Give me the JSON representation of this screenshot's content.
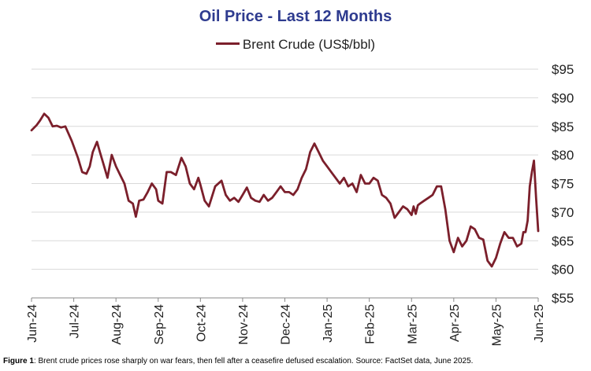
{
  "chart_data": {
    "type": "line",
    "title": "Oil Price - Last 12 Months",
    "ylim": [
      55,
      95
    ],
    "ytick_labels": [
      "$55",
      "$60",
      "$65",
      "$70",
      "$75",
      "$80",
      "$85",
      "$90",
      "$95"
    ],
    "ytick_values": [
      55,
      60,
      65,
      70,
      75,
      80,
      85,
      90,
      95
    ],
    "x_ticks": [
      "Jun-24",
      "Jul-24",
      "Aug-24",
      "Sep-24",
      "Oct-24",
      "Nov-24",
      "Dec-24",
      "Jan-25",
      "Feb-25",
      "Mar-25",
      "Apr-25",
      "May-25",
      "Jun-25"
    ],
    "grid": true,
    "legend_position": "top-center",
    "series": [
      {
        "name": "Brent Crude (US$/bbl)",
        "color": "#7B1F2B",
        "x": [
          0,
          0.12,
          0.2,
          0.3,
          0.4,
          0.5,
          0.6,
          0.7,
          0.8,
          0.95,
          1.0,
          1.1,
          1.2,
          1.3,
          1.38,
          1.45,
          1.55,
          1.62,
          1.7,
          1.8,
          1.9,
          2.0,
          2.1,
          2.2,
          2.3,
          2.4,
          2.47,
          2.55,
          2.65,
          2.75,
          2.85,
          2.95,
          3.0,
          3.1,
          3.2,
          3.3,
          3.42,
          3.55,
          3.65,
          3.75,
          3.85,
          3.95,
          4.0,
          4.1,
          4.2,
          4.35,
          4.5,
          4.6,
          4.7,
          4.8,
          4.9,
          5.0,
          5.1,
          5.2,
          5.3,
          5.4,
          5.5,
          5.6,
          5.7,
          5.8,
          5.9,
          6.0,
          6.1,
          6.2,
          6.3,
          6.4,
          6.5,
          6.55,
          6.6,
          6.7,
          6.8,
          6.9,
          7.0,
          7.1,
          7.2,
          7.3,
          7.4,
          7.5,
          7.6,
          7.7,
          7.8,
          7.9,
          8.0,
          8.1,
          8.2,
          8.3,
          8.4,
          8.5,
          8.6,
          8.7,
          8.8,
          8.9,
          9.0,
          9.05,
          9.1,
          9.15,
          9.2,
          9.3,
          9.4,
          9.5,
          9.6,
          9.7,
          9.8,
          9.9,
          10.0,
          10.1,
          10.2,
          10.3,
          10.4,
          10.5,
          10.6,
          10.7,
          10.8,
          10.9,
          11.0,
          11.1,
          11.2,
          11.3,
          11.4,
          11.5,
          11.6,
          11.65,
          11.7,
          11.75,
          11.8,
          11.85,
          11.9,
          11.95,
          12.0
        ],
        "values": [
          84.3,
          85.2,
          86.0,
          87.2,
          86.5,
          85.0,
          85.1,
          84.8,
          85.0,
          82.5,
          81.5,
          79.5,
          77.0,
          76.7,
          78.0,
          80.5,
          82.3,
          80.5,
          78.5,
          76.0,
          80.0,
          78.0,
          76.5,
          75.0,
          72.0,
          71.5,
          69.2,
          72.0,
          72.2,
          73.5,
          75.0,
          74.0,
          72.0,
          71.5,
          77.0,
          77.0,
          76.5,
          79.5,
          78.0,
          75.0,
          74.0,
          76.0,
          74.8,
          72.0,
          71.0,
          74.5,
          75.5,
          73.0,
          72.0,
          72.5,
          71.8,
          73.0,
          74.3,
          72.5,
          72.0,
          71.8,
          73.0,
          72.0,
          72.5,
          73.5,
          74.5,
          73.5,
          73.5,
          73.0,
          74.0,
          76.0,
          77.5,
          79.0,
          80.5,
          82.0,
          80.5,
          79.0,
          78.0,
          77.0,
          76.0,
          75.0,
          76.0,
          74.5,
          75.0,
          73.5,
          76.5,
          75.0,
          75.0,
          76.0,
          75.5,
          73.0,
          72.5,
          71.5,
          69.0,
          70.0,
          71.0,
          70.5,
          69.5,
          71.0,
          69.7,
          71.2,
          71.5,
          72.0,
          72.5,
          73.0,
          74.5,
          74.5,
          70.5,
          65.0,
          63.0,
          65.5,
          64.0,
          65.0,
          67.5,
          67.0,
          65.5,
          65.2,
          61.5,
          60.5,
          62.0,
          64.5,
          66.5,
          65.5,
          65.5,
          64.0,
          64.5,
          66.5,
          66.5,
          68.5,
          74.5,
          77.0,
          79.0,
          72.5,
          66.7
        ]
      }
    ],
    "caption_label": "Figure 1",
    "caption_text": ": Brent crude prices rose sharply on war fears, then fell after a ceasefire defused escalation. Source: FactSet data, June 2025."
  }
}
